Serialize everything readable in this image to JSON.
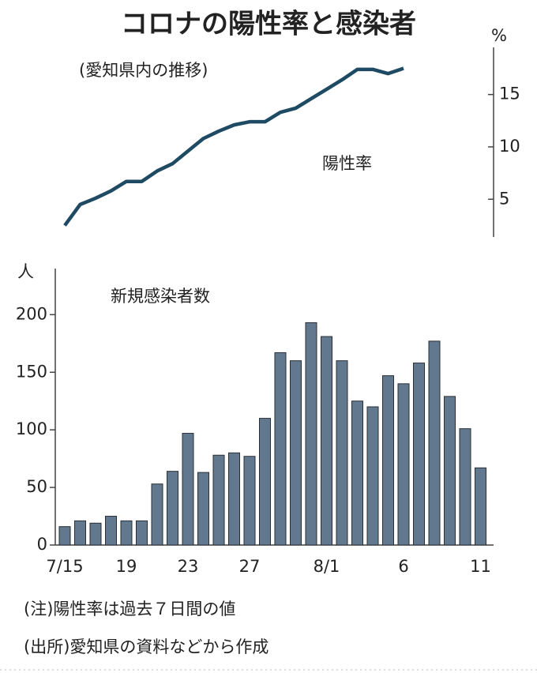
{
  "chart_data": [
    {
      "type": "line",
      "title": "コロナの陽性率と感染者",
      "subtitle": "(愛知県内の推移)",
      "label": "陽性率",
      "unit": "%",
      "color": "#1f4a63",
      "values": [
        2.5,
        4.5,
        5.1,
        5.8,
        6.7,
        6.7,
        7.7,
        8.4,
        9.6,
        10.8,
        11.5,
        12.1,
        12.4,
        12.4,
        13.3,
        13.7,
        14.6,
        15.5,
        16.4,
        17.4,
        17.4,
        17.0,
        17.5,
        null,
        null,
        null,
        null,
        null
      ],
      "ylim": [
        1.4,
        19.5
      ],
      "yticks": [
        5,
        10,
        15
      ]
    },
    {
      "type": "bar",
      "label": "新規感染者数",
      "unit": "人",
      "color": "#62788f",
      "categories": [
        "7/15",
        null,
        null,
        null,
        "19",
        null,
        null,
        null,
        "23",
        null,
        null,
        null,
        "27",
        null,
        null,
        null,
        null,
        "8/1",
        null,
        null,
        null,
        null,
        "6",
        null,
        null,
        null,
        null,
        "11"
      ],
      "values": [
        16,
        21,
        19,
        25,
        21,
        21,
        53,
        64,
        97,
        63,
        78,
        80,
        77,
        110,
        167,
        160,
        193,
        181,
        160,
        125,
        120,
        147,
        140,
        158,
        177,
        129,
        101,
        67
      ],
      "ylim": [
        0,
        240
      ],
      "yticks": [
        0,
        50,
        100,
        150,
        200
      ]
    }
  ],
  "notes": [
    "(注)陽性率は過去７日間の値",
    "(出所)愛知県の資料などから作成"
  ]
}
